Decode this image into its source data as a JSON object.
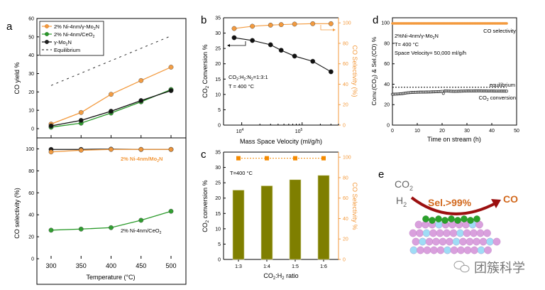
{
  "chart_data": [
    {
      "panel": "a",
      "type": "line",
      "subplots": [
        {
          "name": "yield",
          "ylabel": "CO yield %",
          "ylim": [
            -5,
            60
          ],
          "yticks": [
            0,
            10,
            20,
            30,
            40,
            50,
            60
          ],
          "x": [
            300,
            350,
            400,
            450,
            500
          ],
          "series": [
            {
              "name": "2% Ni-4nm/γ-Mo2N",
              "color": "#f39a3e",
              "values": [
                2.5,
                8.8,
                18.7,
                26.2,
                33.5
              ]
            },
            {
              "name": "2% Ni-4nm/CeO2",
              "color": "#2a9a2a",
              "values": [
                0.8,
                3.0,
                8.5,
                14.6,
                21.3
              ]
            },
            {
              "name": "γ-Mo2N",
              "color": "#111111",
              "values": [
                1.5,
                4.5,
                9.5,
                15.3,
                20.7
              ]
            },
            {
              "name": "Equilibrium",
              "color": "#333333",
              "dashed": true,
              "x": [
                300,
                500
              ],
              "values": [
                23.5,
                50.5
              ]
            }
          ],
          "legend": [
            "2% Ni-4nm/γ-Mo2N",
            "2% Ni-4nm/CeO2",
            "γ-Mo2N",
            "Equilibrium"
          ],
          "legend_position": "top-left"
        },
        {
          "name": "selectivity",
          "ylabel": "CO selectivity (%)",
          "ylim": [
            0,
            110
          ],
          "yticks": [
            0,
            20,
            40,
            60,
            80,
            100
          ],
          "x": [
            300,
            350,
            400,
            450,
            500
          ],
          "series": [
            {
              "name": "γ-Mo2N",
              "color": "#111111",
              "values": [
                99.5,
                99.5,
                99.8,
                99.5,
                99.5
              ]
            },
            {
              "name": "2% Ni-4nm/Mo2N",
              "color": "#f39a3e",
              "values": [
                97.2,
                98.8,
                99.5,
                99.5,
                99.5
              ]
            },
            {
              "name": "2% Ni-4nm/CeO2",
              "color": "#2a9a2a",
              "values": [
                26.0,
                27.0,
                28.3,
                35.0,
                43.2
              ]
            }
          ],
          "annotations": [
            "2% Ni-4nm/Mo2N",
            "2% Ni-4nm/CeO2"
          ]
        }
      ],
      "xlabel": "Temperature (°C)",
      "xticks": [
        300,
        350,
        400,
        450,
        500
      ],
      "xlim": [
        275,
        525
      ]
    },
    {
      "panel": "b",
      "type": "line",
      "xscale": "log",
      "xlabel": "Mass Space Velocity (ml/g/h)",
      "xlim": [
        5000,
        400000
      ],
      "xticks": [
        10000,
        100000
      ],
      "xtick_labels": [
        "10^4",
        "10^5"
      ],
      "x": [
        7500,
        15000,
        30000,
        45000,
        75000,
        150000,
        300000
      ],
      "ylabel_left": "CO2 Conversion %",
      "ylim_left": [
        0,
        35
      ],
      "yticks_left": [
        0,
        5,
        10,
        15,
        20,
        25,
        30,
        35
      ],
      "ylabel_right": "CO Selectivity (%)",
      "ylim_right": [
        0,
        105
      ],
      "yticks_right": [
        0,
        20,
        40,
        60,
        80,
        100
      ],
      "series": [
        {
          "name": "CO2 Conversion",
          "axis": "left",
          "color": "#111111",
          "values": [
            28.5,
            27.6,
            26.2,
            24.4,
            22.5,
            20.8,
            17.4
          ]
        },
        {
          "name": "CO Selectivity",
          "axis": "right",
          "color": "#f39a3e",
          "values": [
            94.5,
            96.7,
            97.8,
            98.3,
            98.8,
            99.2,
            99.2
          ]
        }
      ],
      "annotations": [
        "CO2:H2:N2=1:3:1",
        "T = 400 °C"
      ]
    },
    {
      "panel": "c",
      "type": "bar",
      "categories": [
        "1:3",
        "1:4",
        "1:5",
        "1:6"
      ],
      "xlabel": "CO2:H2 ratio",
      "ylabel_left": "CO2 conversion %",
      "ylim_left": [
        0,
        35
      ],
      "yticks_left": [
        0,
        5,
        10,
        15,
        20,
        25,
        30,
        35
      ],
      "ylabel_right": "CO Selectivity %",
      "ylim_right": [
        0,
        105
      ],
      "yticks_right": [
        0,
        20,
        40,
        60,
        80,
        100
      ],
      "series": [
        {
          "name": "CO2 conversion",
          "axis": "left",
          "color": "#7f7f00",
          "values": [
            22.6,
            24.0,
            26.0,
            27.4
          ]
        },
        {
          "name": "CO Selectivity",
          "axis": "right",
          "color": "#f58a00",
          "values": [
            99.0,
            99.0,
            99.0,
            99.0
          ]
        }
      ],
      "annotations": [
        "T=400 °C"
      ]
    },
    {
      "panel": "d",
      "type": "line",
      "xlabel": "Time on stream (h)",
      "xlim": [
        0,
        50
      ],
      "xticks": [
        0,
        10,
        20,
        30,
        40,
        50
      ],
      "ylabel": "Conv.(CO2) & Sel.(CO) %",
      "ylim": [
        0,
        105
      ],
      "yticks": [
        0,
        20,
        40,
        60,
        80,
        100
      ],
      "series": [
        {
          "name": "CO selectivity",
          "color": "#f39a3e",
          "x_range": [
            0,
            46
          ],
          "value": 99.5
        },
        {
          "name": "equilibrium",
          "color": "#000000",
          "dashed": true,
          "x_range": [
            0,
            46
          ],
          "value": 37.0
        },
        {
          "name": "CO2 conversion",
          "color": "#111111",
          "x": [
            0,
            2,
            4,
            5,
            6,
            8,
            10,
            15,
            19,
            20,
            20.5,
            21,
            25,
            30,
            35,
            40,
            46
          ],
          "values": [
            30.2,
            30.4,
            30.8,
            31.2,
            31.6,
            32.0,
            32.2,
            32.4,
            32.8,
            33.0,
            31.0,
            33.4,
            33.0,
            33.4,
            33.5,
            33.3,
            33.2
          ]
        }
      ],
      "annotations": [
        "2%Ni-4nm/γ-Mo2N",
        "T= 400 °C",
        "Space Velocity= 50,000 ml/g/h",
        "CO selectivity",
        "equilibrium",
        "CO2 conversion"
      ]
    }
  ],
  "panel_labels": [
    "a",
    "b",
    "c",
    "d",
    "e"
  ],
  "panel_e": {
    "reactant_1": "CO",
    "reactant_1_sub": "2",
    "reactant_2": "H",
    "reactant_2_sub": "2",
    "arrow_label": "Sel.>99%",
    "product": "CO"
  },
  "watermark": {
    "text": "团簇科学",
    "icon": "wechat-icon"
  },
  "text": {
    "a_legend": [
      "2% Ni-4nm/γ-Mo",
      "N",
      "2% Ni-4nm/CeO",
      "γ-Mo",
      "N",
      "Equilibrium"
    ],
    "a_ylabel_top": "CO yield %",
    "a_ylabel_bottom": "CO selectivity (%)",
    "a_xlabel": "Temperature (°C)",
    "a_ann_mo2n": "2% Ni-4nm/Mo",
    "a_ann_ceo2": "2% Ni-4nm/CeO",
    "sub2": "2",
    "b_xlabel": "Mass Space Velocity (ml/g/h)",
    "b_ylabel_left_a": "CO",
    "b_ylabel_left_b": " Conversion %",
    "b_ylabel_right": "CO Selectivity (%)",
    "b_ann1_a": "CO",
    "b_ann1_b": ":H",
    "b_ann1_c": ":N",
    "b_ann1_d": "=1:3:1",
    "b_ann2": "T = 400 °C",
    "b_xt1": "10",
    "b_xt1_sup": "4",
    "b_xt2": "10",
    "b_xt2_sup": "5",
    "c_ylabel_left_a": "CO",
    "c_ylabel_left_b": " conversion %",
    "c_ylabel_right": "CO Selectivity %",
    "c_xlabel_a": "CO",
    "c_xlabel_b": ":H",
    "c_xlabel_c": " ratio",
    "c_ann": "T=400 °C",
    "d_xlabel": "Time on stream (h)",
    "d_ylabel_a": "Conv.(CO",
    "d_ylabel_b": ") & Sel.(CO) %",
    "d_ann1_a": "2%Ni-4nm/γ-Mo",
    "d_ann1_b": "N",
    "d_ann2": "T= 400 °C",
    "d_ann3": "Space Velocity= 50,000 ml/g/h",
    "d_lab_sel": "CO selectivity",
    "d_lab_eq": "equilibrium",
    "d_lab_conv_a": "CO",
    "d_lab_conv_b": " conversion"
  }
}
